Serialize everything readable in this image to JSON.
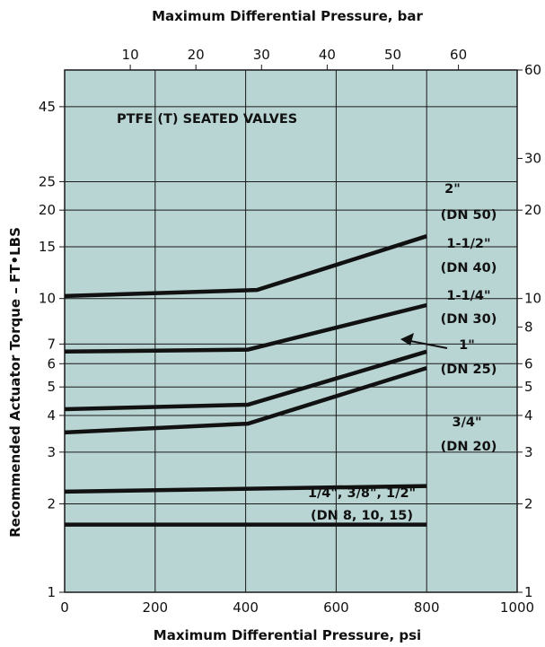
{
  "chart_data": {
    "type": "line",
    "title": "PTFE (T) SEATED VALVES",
    "xlabel": "Maximum Differential Pressure, psi",
    "ylabel": "Recommended Actuator Torque – FT•LBS",
    "x2label": "Maximum Differential Pressure, bar",
    "xlim": [
      0,
      1000
    ],
    "ylim": [
      1,
      60
    ],
    "y_scale": "log",
    "x_ticks": [
      "0",
      "200",
      "400",
      "600",
      "800",
      "1000"
    ],
    "x2_ticks": [
      "10",
      "20",
      "30",
      "40",
      "50",
      "60"
    ],
    "y_left_ticks": [
      "1",
      "2",
      "3",
      "4",
      "5",
      "6",
      "7",
      "10",
      "15",
      "20",
      "25",
      "45"
    ],
    "y_right_ticks": [
      "1",
      "2",
      "3",
      "4",
      "5",
      "6",
      "8",
      "10",
      "20",
      "30",
      "60"
    ],
    "grid": true,
    "background": "#b8d4d3",
    "line_color": "#111111",
    "series": [
      {
        "name": "2\" (DN 50)",
        "x": [
          0,
          425,
          800
        ],
        "y": [
          10.2,
          10.7,
          16.3
        ]
      },
      {
        "name": "1-1/2\" (DN 40)",
        "x": [
          0,
          405,
          800
        ],
        "y": [
          6.6,
          6.7,
          9.5
        ]
      },
      {
        "name": "1-1/4\" (DN 30)",
        "x": [
          0,
          405,
          800
        ],
        "y": [
          4.2,
          4.35,
          6.6
        ]
      },
      {
        "name": "1\" (DN 25)",
        "x": [
          0,
          405,
          800
        ],
        "y": [
          3.5,
          3.75,
          5.8
        ]
      },
      {
        "name": "3/4\" (DN 20)",
        "x": [
          0,
          800
        ],
        "y": [
          2.2,
          2.3
        ]
      },
      {
        "name": "1/4\", 3/8\", 1/2\" (DN 8, 10, 15)",
        "x": [
          0,
          800
        ],
        "y": [
          1.7,
          1.7
        ]
      }
    ],
    "annotations": [
      {
        "line1": "2\"",
        "line2": "(DN 50)"
      },
      {
        "line1": "1-1/2\"",
        "line2": "(DN 40)"
      },
      {
        "line1": "1-1/4\"",
        "line2": "(DN 30)"
      },
      {
        "line1": "1\"",
        "line2": "(DN 25)"
      },
      {
        "line1": "3/4\"",
        "line2": "(DN 20)"
      },
      {
        "line1": "1/4\", 3/8\", 1/2\"",
        "line2": "(DN 8, 10, 15)"
      }
    ]
  }
}
